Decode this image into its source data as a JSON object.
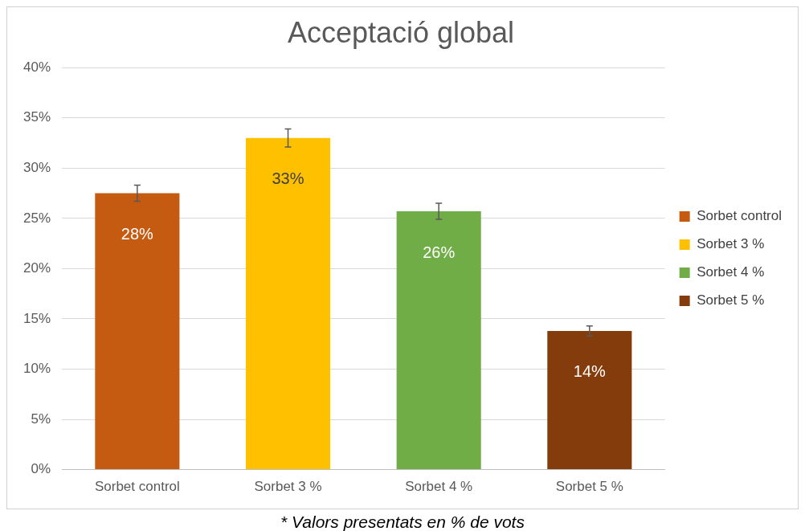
{
  "chart_data": {
    "type": "bar",
    "title": "Acceptació global",
    "categories": [
      "Sorbet control",
      "Sorbet 3 %",
      "Sorbet 4 %",
      "Sorbet 5 %"
    ],
    "series": [
      {
        "name": "Sorbet control",
        "color": "#c55a11",
        "values": [
          27.5,
          null,
          null,
          null
        ],
        "errors": [
          0.8,
          null,
          null,
          null
        ],
        "value_labels": [
          "28%",
          null,
          null,
          null
        ]
      },
      {
        "name": "Sorbet 3 %",
        "color": "#ffc000",
        "values": [
          null,
          33.0,
          null,
          null
        ],
        "errors": [
          null,
          0.9,
          null,
          null
        ],
        "value_labels": [
          null,
          "33%",
          null,
          null
        ]
      },
      {
        "name": "Sorbet 4 %",
        "color": "#70ad47",
        "values": [
          null,
          null,
          25.7,
          null
        ],
        "errors": [
          null,
          null,
          0.8,
          null
        ],
        "value_labels": [
          null,
          null,
          "26%",
          null
        ]
      },
      {
        "name": "Sorbet 5 %",
        "color": "#843c0c",
        "values": [
          null,
          null,
          null,
          13.8
        ],
        "errors": [
          null,
          null,
          null,
          0.5
        ],
        "value_labels": [
          null,
          null,
          null,
          "14%"
        ]
      }
    ],
    "ylim": [
      0,
      40
    ],
    "yticks": [
      {
        "value": 0,
        "label": "0%"
      },
      {
        "value": 5,
        "label": "5%"
      },
      {
        "value": 10,
        "label": "10%"
      },
      {
        "value": 15,
        "label": "15%"
      },
      {
        "value": 20,
        "label": "20%"
      },
      {
        "value": 25,
        "label": "25%"
      },
      {
        "value": 30,
        "label": "30%"
      },
      {
        "value": 35,
        "label": "35%"
      },
      {
        "value": 40,
        "label": "40%"
      }
    ],
    "grid": "y",
    "legend": "right",
    "annotations": [
      "* Valors presentats en % de vots"
    ]
  }
}
